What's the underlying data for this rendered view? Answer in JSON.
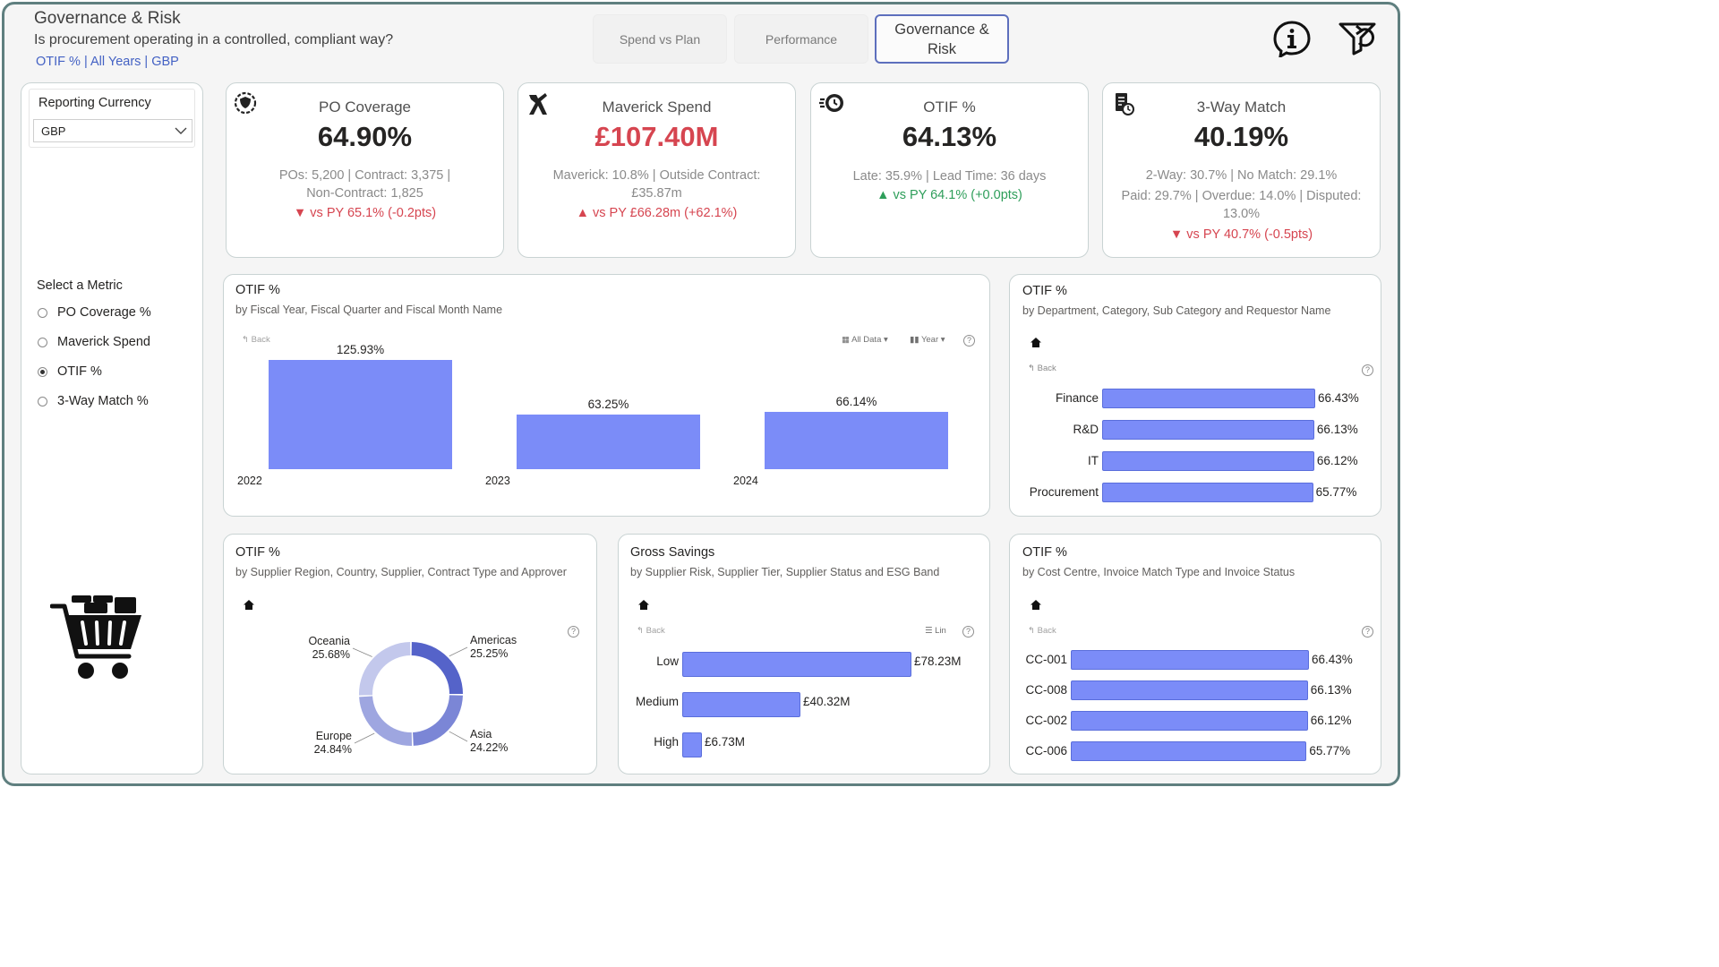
{
  "header": {
    "title": "Governance & Risk",
    "subtitle": "Is procurement operating in a controlled, compliant way?",
    "filters": "OTIF % | All Years | GBP"
  },
  "nav": {
    "spend_vs_plan": "Spend vs Plan",
    "performance": "Performance",
    "governance_line1": "Governance &",
    "governance_line2": "Risk"
  },
  "currency": {
    "label": "Reporting Currency",
    "selected": "GBP"
  },
  "metric_selector": {
    "title": "Select a Metric",
    "options": [
      "PO Coverage %",
      "Maverick Spend",
      "OTIF %",
      "3-Way Match %"
    ],
    "selected_index": 2
  },
  "kpis": [
    {
      "title": "PO Coverage",
      "value": "64.90%",
      "detail1": "POs: 5,200 | Contract: 3,375 |",
      "detail2": "Non-Contract: 1,825",
      "detail3": "",
      "compare": "▼ vs PY 65.1% (-0.2pts)",
      "icon": "shield-gear-icon"
    },
    {
      "title": "Maverick Spend",
      "value": "£107.40M",
      "detail1": "Maverick: 10.8% | Outside Contract:",
      "detail2": "£35.87m",
      "detail3": "",
      "compare": "▲ vs PY £66.28m (+62.1%)",
      "icon": "tools-icon"
    },
    {
      "title": "OTIF %",
      "value": "64.13%",
      "detail1": "Late: 35.9% | Lead Time: 36 days",
      "detail2": "",
      "detail3": "",
      "compare": "▲ vs PY 64.1% (+0.0pts)",
      "icon": "fast-clock-icon"
    },
    {
      "title": "3-Way Match",
      "value": "40.19%",
      "detail1": "2-Way: 30.7% | No Match: 29.1%",
      "detail2": "Paid: 29.7% | Overdue: 14.0% | Disputed:",
      "detail3": "13.0%",
      "compare": "▼ vs PY 40.7% (-0.5pts)",
      "icon": "invoice-icon"
    }
  ],
  "colors": {
    "bar": "#7b8cf8",
    "red": "#d64550",
    "green": "#2e9e5a",
    "accent": "#4462c4"
  },
  "chart_fiscal": {
    "title": "OTIF %",
    "subtitle": "by Fiscal Year, Fiscal Quarter and Fiscal Month Name",
    "back": "Back",
    "all_data": "All Data",
    "year": "Year"
  },
  "chart_dept": {
    "title": "OTIF %",
    "subtitle": "by Department, Category, Sub Category and Requestor Name",
    "back": "Back"
  },
  "chart_region": {
    "title": "OTIF %",
    "subtitle": "by Supplier Region, Country, Supplier, Contract Type and Approver"
  },
  "chart_savings": {
    "title": "Gross Savings",
    "subtitle": "by Supplier Risk, Supplier Tier, Supplier Status and ESG Band",
    "back": "Back",
    "lin": "Lin"
  },
  "chart_cc": {
    "title": "OTIF %",
    "subtitle": "by Cost Centre, Invoice Match Type and Invoice Status",
    "back": "Back"
  },
  "chart_data": [
    {
      "type": "bar",
      "categories": [
        "2022",
        "2023",
        "2024"
      ],
      "values": [
        125.93,
        63.25,
        66.14
      ],
      "labels": [
        "125.93%",
        "63.25%",
        "66.14%"
      ],
      "ylim": [
        0,
        130
      ]
    },
    {
      "type": "bar",
      "orientation": "horizontal",
      "categories": [
        "Finance",
        "R&D",
        "IT",
        "Procurement"
      ],
      "values": [
        66.43,
        66.13,
        66.12,
        65.77
      ],
      "labels": [
        "66.43%",
        "66.13%",
        "66.12%",
        "65.77%"
      ]
    },
    {
      "type": "pie",
      "donut": true,
      "categories": [
        "Americas",
        "Asia",
        "Europe",
        "Oceania"
      ],
      "values": [
        25.25,
        24.22,
        24.84,
        25.68
      ],
      "labels": [
        "25.25%",
        "24.22%",
        "24.84%",
        "25.68%"
      ],
      "colors": [
        "#5563c9",
        "#7b86d6",
        "#9ea6e0",
        "#c3c8ec"
      ]
    },
    {
      "type": "bar",
      "orientation": "horizontal",
      "categories": [
        "Low",
        "Medium",
        "High"
      ],
      "values": [
        78.23,
        40.32,
        6.73
      ],
      "labels": [
        "£78.23M",
        "£40.32M",
        "£6.73M"
      ]
    },
    {
      "type": "bar",
      "orientation": "horizontal",
      "categories": [
        "CC-001",
        "CC-008",
        "CC-002",
        "CC-006"
      ],
      "values": [
        66.43,
        66.13,
        66.12,
        65.77
      ],
      "labels": [
        "66.43%",
        "66.13%",
        "66.12%",
        "65.77%"
      ]
    }
  ]
}
